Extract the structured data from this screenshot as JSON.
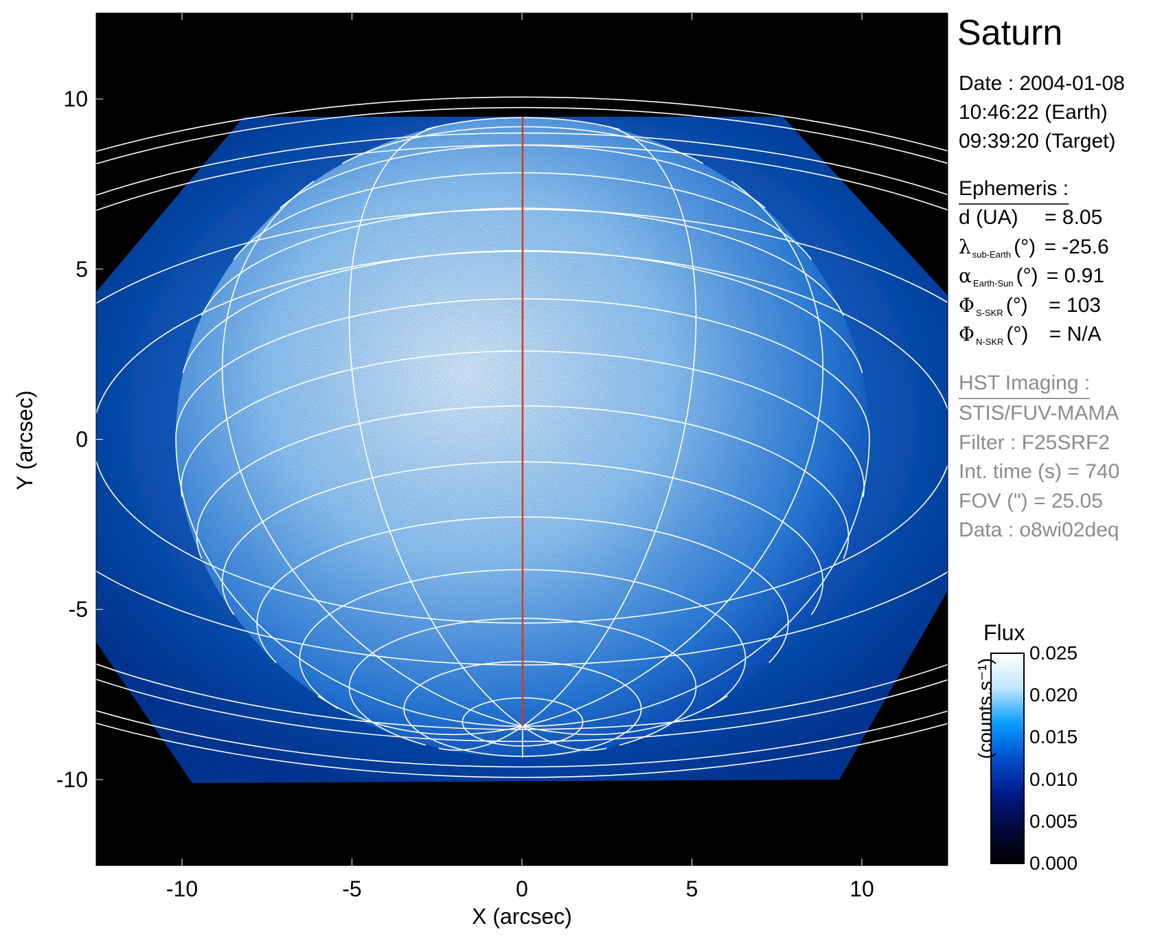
{
  "chart_data": {
    "type": "heatmap",
    "title": "Saturn",
    "xlabel": "X (arcsec)",
    "ylabel": "Y (arcsec)",
    "xlim": [
      -12.525,
      12.525
    ],
    "ylim": [
      -12.525,
      12.525
    ],
    "xticks": [
      "-10",
      "-5",
      "0",
      "5",
      "10"
    ],
    "xtick_values": [
      -10,
      -5,
      0,
      5,
      10
    ],
    "yticks": [
      "10",
      "5",
      "0",
      "-5",
      "-10"
    ],
    "ytick_values": [
      10,
      5,
      0,
      -5,
      -10
    ],
    "sub_observer_latitude_deg": -25.6,
    "grid_lat_step_deg": 10,
    "grid_lon_step_deg": 30,
    "colorbar": {
      "title": "Flux",
      "unit": "(counts.s⁻¹)",
      "range": [
        0.0,
        0.025
      ],
      "ticks": [
        "0.025",
        "0.020",
        "0.015",
        "0.010",
        "0.005",
        "0.000"
      ],
      "tick_values": [
        0.025,
        0.02,
        0.015,
        0.01,
        0.005,
        0.0
      ],
      "colors": [
        "#000000",
        "#000a3a",
        "#001a8a",
        "#0050d0",
        "#0a9cff",
        "#bfe6ff",
        "#ffffff"
      ]
    },
    "colors": {
      "grid": "#ffffff",
      "central_meridian": "#d83a10"
    }
  },
  "info": {
    "title": "Saturn",
    "date": "Date : 2004-01-08",
    "earth_time": "10:46:22 (Earth)",
    "target_time": "09:39:20 (Target)",
    "ephemeris_header": "Ephemeris :",
    "ephemeris": [
      {
        "sym": "",
        "sub": "",
        "label": "d (UA)",
        "value": "= 8.05"
      },
      {
        "sym": "λ",
        "sub": "sub-Earth",
        "label": "(°)",
        "value": "= -25.6"
      },
      {
        "sym": "α",
        "sub": "Earth-Sun",
        "label": "(°)",
        "value": "= 0.91"
      },
      {
        "sym": "Φ",
        "sub": "S-SKR",
        "label": "(°)",
        "value": "= 103"
      },
      {
        "sym": "Φ",
        "sub": "N-SKR",
        "label": "(°)",
        "value": "= N/A"
      }
    ],
    "imaging_header": "HST Imaging :",
    "imaging": [
      "STIS/FUV-MAMA",
      "Filter : F25SRF2",
      "Int. time (s) = 740",
      "FOV (\") = 25.05",
      "Data : o8wi02deq"
    ]
  }
}
